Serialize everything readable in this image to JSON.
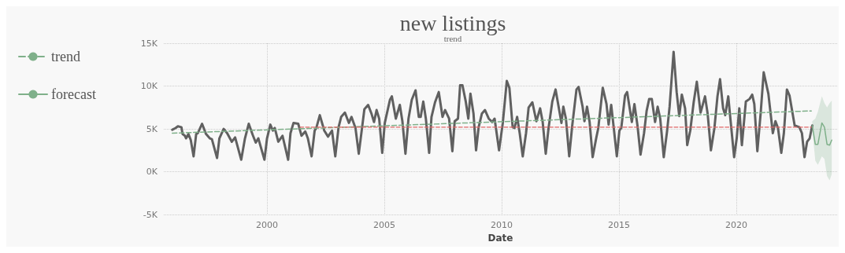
{
  "chart_data": {
    "type": "line",
    "title": "new listings",
    "subtitle": "trend",
    "xlabel": "Date",
    "xlim": [
      1995.6,
      2024.3
    ],
    "xticks": [
      2000,
      2005,
      2010,
      2015,
      2020
    ],
    "ylim": [
      -5000,
      15000
    ],
    "yticks": [
      {
        "value": -5000,
        "label": "-5K"
      },
      {
        "value": 0,
        "label": "0K"
      },
      {
        "value": 5000,
        "label": "5K"
      },
      {
        "value": 10000,
        "label": "10K"
      },
      {
        "value": 15000,
        "label": "15K"
      }
    ],
    "grid": true,
    "legend": "left",
    "marker": "none",
    "series": [
      {
        "color": "#606060",
        "line_style": "solid",
        "x": [
          1995.96,
          1996.1,
          1996.2,
          1996.35,
          1996.4,
          1996.5,
          1996.55,
          1996.65,
          1996.75,
          1996.87,
          1996.98,
          1997.05,
          1997.23,
          1997.4,
          1997.56,
          1997.65,
          1997.87,
          1997.97,
          1998.15,
          1998.3,
          1998.5,
          1998.64,
          1998.9,
          1999.06,
          1999.22,
          1999.39,
          1999.52,
          1999.63,
          1999.89,
          2000.0,
          2000.14,
          2000.25,
          2000.33,
          2000.48,
          2000.66,
          2000.9,
          2001.0,
          2001.13,
          2001.33,
          2001.47,
          2001.63,
          2001.74,
          2001.9,
          2002.03,
          2002.1,
          2002.25,
          2002.44,
          2002.6,
          2002.77,
          2002.91,
          2003.05,
          2003.16,
          2003.32,
          2003.49,
          2003.6,
          2003.77,
          2003.91,
          2004.04,
          2004.15,
          2004.31,
          2004.45,
          2004.56,
          2004.67,
          2004.78,
          2004.91,
          2005.02,
          2005.24,
          2005.32,
          2005.49,
          2005.66,
          2005.77,
          2005.9,
          2006.03,
          2006.17,
          2006.33,
          2006.47,
          2006.55,
          2006.66,
          2006.77,
          2006.91,
          2007.01,
          2007.16,
          2007.32,
          2007.48,
          2007.59,
          2007.76,
          2007.9,
          2008.0,
          2008.14,
          2008.23,
          2008.33,
          2008.47,
          2008.58,
          2008.67,
          2008.8,
          2008.91,
          2009.02,
          2009.16,
          2009.29,
          2009.45,
          2009.6,
          2009.7,
          2009.89,
          2010.05,
          2010.22,
          2010.33,
          2010.47,
          2010.55,
          2010.66,
          2010.77,
          2010.9,
          2011.04,
          2011.15,
          2011.31,
          2011.48,
          2011.64,
          2011.75,
          2011.88,
          2012.0,
          2012.16,
          2012.3,
          2012.55,
          2012.63,
          2012.74,
          2012.88,
          2013.01,
          2013.19,
          2013.28,
          2013.45,
          2013.53,
          2013.64,
          2013.75,
          2013.88,
          2014.03,
          2014.12,
          2014.31,
          2014.47,
          2014.56,
          2014.67,
          2014.78,
          2014.91,
          2015.02,
          2015.1,
          2015.26,
          2015.35,
          2015.55,
          2015.66,
          2015.79,
          2015.92,
          2016.07,
          2016.18,
          2016.29,
          2016.4,
          2016.54,
          2016.65,
          2016.76,
          2016.91,
          2017.05,
          2017.16,
          2017.33,
          2017.46,
          2017.57,
          2017.68,
          2017.82,
          2017.91,
          2018.04,
          2018.19,
          2018.32,
          2018.48,
          2018.67,
          2018.78,
          2018.92,
          2019.07,
          2019.2,
          2019.31,
          2019.44,
          2019.53,
          2019.66,
          2019.75,
          2019.91,
          2020.02,
          2020.13,
          2020.24,
          2020.41,
          2020.57,
          2020.68,
          2020.77,
          2020.9,
          2021.04,
          2021.17,
          2021.37,
          2021.56,
          2021.67,
          2021.78,
          2021.92,
          2022.03,
          2022.16,
          2022.27,
          2022.49,
          2022.69,
          2022.8,
          2022.91,
          2023.02,
          2023.13,
          2023.24
        ],
        "values": [
          4900,
          5100,
          5300,
          5200,
          4400,
          4200,
          3900,
          4400,
          3700,
          1800,
          4400,
          4500,
          5600,
          4400,
          3900,
          3800,
          1600,
          3900,
          5000,
          4500,
          3500,
          4000,
          1400,
          3900,
          5600,
          4300,
          3400,
          3900,
          1400,
          3900,
          5500,
          4800,
          5100,
          3500,
          4200,
          1400,
          4500,
          5700,
          5600,
          4200,
          4700,
          3900,
          1800,
          4800,
          5100,
          6600,
          4800,
          4100,
          4800,
          1800,
          5200,
          6400,
          6900,
          5700,
          6400,
          5100,
          2100,
          4900,
          7300,
          7800,
          6800,
          5800,
          7200,
          6200,
          2200,
          5700,
          8400,
          8800,
          6200,
          7800,
          5900,
          2100,
          6200,
          8400,
          9500,
          6400,
          6400,
          8200,
          6200,
          2200,
          6400,
          8100,
          9300,
          6400,
          7200,
          6200,
          2400,
          5900,
          6200,
          10100,
          10100,
          8200,
          6200,
          9100,
          6800,
          2500,
          5200,
          6800,
          7200,
          6200,
          5800,
          6200,
          2500,
          5700,
          10600,
          9800,
          5200,
          5100,
          6400,
          4500,
          1800,
          4500,
          7500,
          8100,
          5900,
          7400,
          5800,
          2100,
          5100,
          8200,
          9600,
          5700,
          7600,
          6200,
          1800,
          5400,
          9600,
          9900,
          7600,
          5900,
          7600,
          5800,
          1700,
          3900,
          5100,
          9800,
          7900,
          5500,
          7800,
          5100,
          1800,
          4800,
          5100,
          8900,
          9300,
          5800,
          7900,
          5400,
          2000,
          4500,
          7100,
          8500,
          8500,
          5800,
          7600,
          6200,
          1700,
          4700,
          7600,
          14000,
          9300,
          6500,
          9000,
          7400,
          3100,
          4800,
          8200,
          10500,
          6900,
          8800,
          6800,
          2500,
          5100,
          8800,
          10800,
          7400,
          6600,
          8800,
          6200,
          1700,
          3900,
          7400,
          3100,
          8200,
          8500,
          9000,
          7900,
          2400,
          6800,
          11600,
          9100,
          4500,
          5900,
          5100,
          2200,
          4500,
          9600,
          8900,
          5400,
          5200,
          4500,
          1700,
          3500,
          3900,
          5400
        ]
      },
      {
        "name": "trend",
        "color": "#7fb08a",
        "line_style": "dashed",
        "x": [
          1995.96,
          2023.2
        ],
        "values": [
          4500,
          7100
        ]
      },
      {
        "color": "#e06666",
        "line_style": "dashed",
        "x": [
          2001.4,
          2023.2
        ],
        "values": [
          5200,
          5200
        ]
      },
      {
        "name": "forecast",
        "color": "#7fb08a",
        "line_style": "solid",
        "x": [
          2023.24,
          2023.37,
          2023.48,
          2023.65,
          2023.76,
          2023.87,
          2023.98,
          2024.07
        ],
        "values": [
          5400,
          3200,
          3200,
          5700,
          5200,
          3200,
          3100,
          3700
        ],
        "lower": [
          5000,
          1300,
          800,
          1800,
          1500,
          -500,
          -1000,
          -300
        ],
        "upper": [
          5900,
          6200,
          7000,
          8800,
          8000,
          7500,
          8000,
          8300
        ]
      }
    ]
  }
}
